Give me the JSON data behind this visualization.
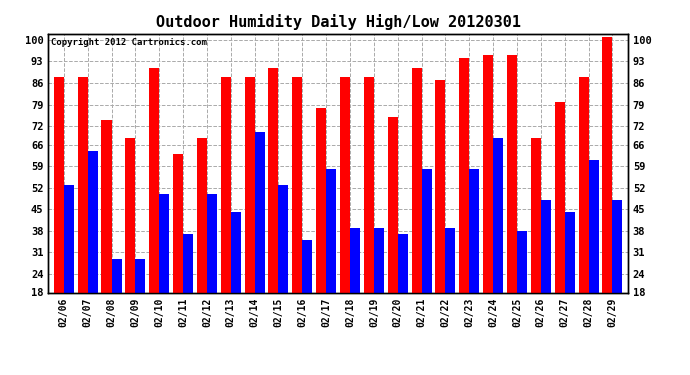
{
  "title": "Outdoor Humidity Daily High/Low 20120301",
  "copyright": "Copyright 2012 Cartronics.com",
  "dates": [
    "02/06",
    "02/07",
    "02/08",
    "02/09",
    "02/10",
    "02/11",
    "02/12",
    "02/13",
    "02/14",
    "02/15",
    "02/16",
    "02/17",
    "02/18",
    "02/19",
    "02/20",
    "02/21",
    "02/22",
    "02/23",
    "02/24",
    "02/25",
    "02/26",
    "02/27",
    "02/28",
    "02/29"
  ],
  "highs": [
    88,
    88,
    74,
    68,
    91,
    63,
    68,
    88,
    88,
    91,
    88,
    78,
    88,
    88,
    75,
    91,
    87,
    94,
    95,
    95,
    68,
    80,
    88,
    101
  ],
  "lows": [
    53,
    64,
    29,
    29,
    50,
    37,
    50,
    44,
    70,
    53,
    35,
    58,
    39,
    39,
    37,
    58,
    39,
    58,
    68,
    38,
    48,
    44,
    61,
    48
  ],
  "high_color": "#ff0000",
  "low_color": "#0000ff",
  "bg_color": "#ffffff",
  "plot_bg_color": "#ffffff",
  "grid_color": "#aaaaaa",
  "ylim_min": 18,
  "ylim_max": 102,
  "yticks": [
    18,
    24,
    31,
    38,
    45,
    52,
    59,
    66,
    72,
    79,
    86,
    93,
    100
  ],
  "title_fontsize": 11,
  "bar_width": 0.42
}
